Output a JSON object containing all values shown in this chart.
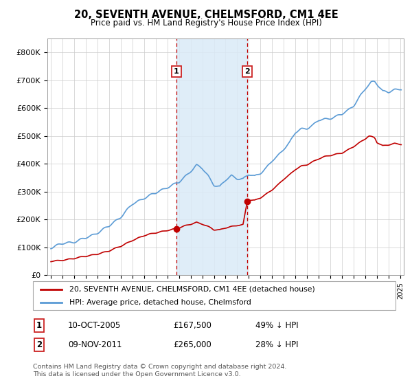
{
  "title": "20, SEVENTH AVENUE, CHELMSFORD, CM1 4EE",
  "subtitle": "Price paid vs. HM Land Registry's House Price Index (HPI)",
  "legend_line1": "20, SEVENTH AVENUE, CHELMSFORD, CM1 4EE (detached house)",
  "legend_line2": "HPI: Average price, detached house, Chelmsford",
  "footnote": "Contains HM Land Registry data © Crown copyright and database right 2024.\nThis data is licensed under the Open Government Licence v3.0.",
  "sale1_date": "10-OCT-2005",
  "sale1_price": "£167,500",
  "sale1_hpi": "49% ↓ HPI",
  "sale1_label": "1",
  "sale1_year": 2005.78,
  "sale1_price_val": 167500,
  "sale2_date": "09-NOV-2011",
  "sale2_price": "£265,000",
  "sale2_hpi": "28% ↓ HPI",
  "sale2_label": "2",
  "sale2_year": 2011.86,
  "sale2_price_val": 265000,
  "hpi_color": "#5b9bd5",
  "price_color": "#c00000",
  "shade_color": "#daeaf7",
  "dashed_color": "#c00000",
  "ylim_min": 0,
  "ylim_max": 850000,
  "yticks": [
    0,
    100000,
    200000,
    300000,
    400000,
    500000,
    600000,
    700000,
    800000
  ],
  "ytick_labels": [
    "£0",
    "£100K",
    "£200K",
    "£300K",
    "£400K",
    "£500K",
    "£600K",
    "£700K",
    "£800K"
  ],
  "xmin": 1995.0,
  "xmax": 2025.3
}
